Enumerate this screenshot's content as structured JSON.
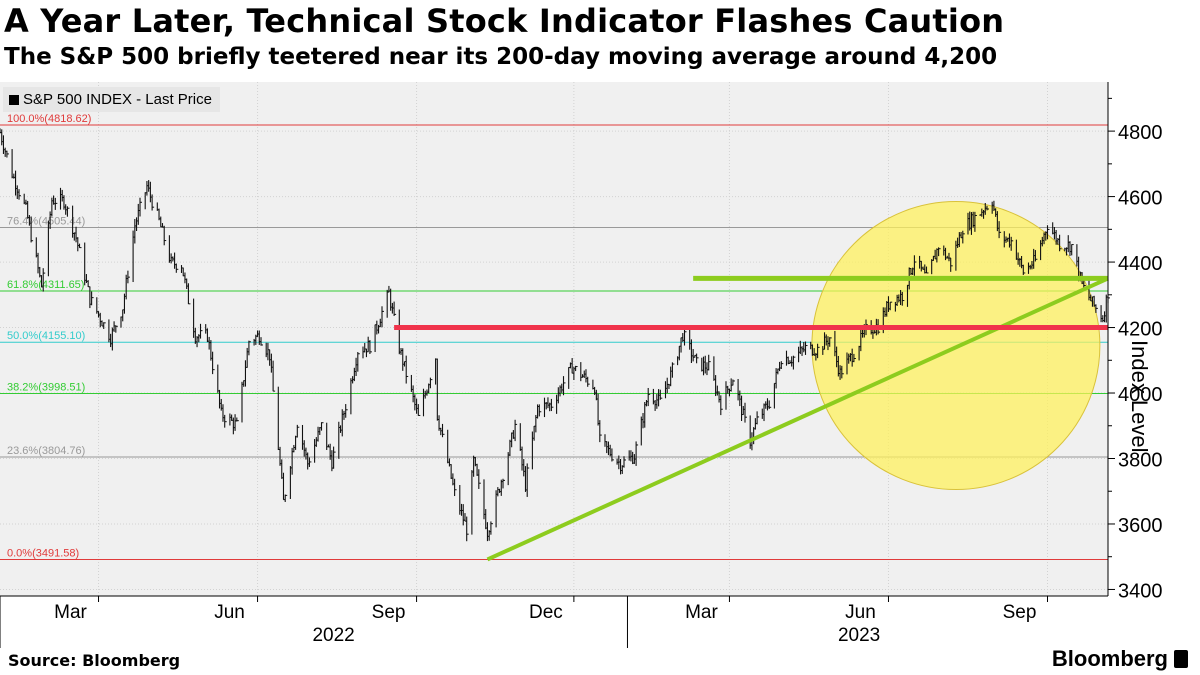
{
  "header": {
    "title": "A Year Later, Technical Stock Indicator Flashes Caution",
    "subtitle": "The S&P 500 briefly teetered near its 200-day moving average around 4,200"
  },
  "footer": {
    "source": "Source: Bloomberg",
    "brand": "Bloomberg"
  },
  "colors": {
    "fib_red": "#e03b3b",
    "fib_green": "#33cc33",
    "fib_cyan": "#33cccc",
    "fib_gray": "#999999",
    "trend_green": "#8dcc1e",
    "ma_red": "#f0334b",
    "circle_fill": "#fff159",
    "plot_bg": "#f0f0f0"
  },
  "chart_data": {
    "type": "line",
    "ylabel": "Index Level",
    "ylim": [
      3380,
      4950
    ],
    "yticks": [
      3400,
      3600,
      3800,
      4000,
      4200,
      4400,
      4600,
      4800
    ],
    "xlim": [
      "2022-01-03",
      "2023-10-06"
    ],
    "x_month_ticks": [
      {
        "label": "Mar",
        "date": "2022-03-01"
      },
      {
        "label": "Jun",
        "date": "2022-06-01"
      },
      {
        "label": "Sep",
        "date": "2022-09-01"
      },
      {
        "label": "Dec",
        "date": "2022-12-01"
      },
      {
        "label": "Mar",
        "date": "2023-03-01"
      },
      {
        "label": "Jun",
        "date": "2023-06-01"
      },
      {
        "label": "Sep",
        "date": "2023-09-01"
      }
    ],
    "x_year_labels": [
      {
        "label": "2022",
        "date": "2022-07-15"
      },
      {
        "label": "2023",
        "date": "2023-05-15"
      }
    ],
    "grid": "horizontal",
    "legend": {
      "label": "S&P 500 INDEX - Last Price",
      "placement": "top-left"
    },
    "fib_levels": [
      {
        "label": "100.0%(4818.62)",
        "value": 4818.62,
        "color": "red"
      },
      {
        "label": "76.4%(4505.44)",
        "value": 4505.44,
        "color": "gray"
      },
      {
        "label": "61.8%(4311.65)",
        "value": 4311.65,
        "color": "green"
      },
      {
        "label": "50.0%(4155.10)",
        "value": 4155.1,
        "color": "cyan"
      },
      {
        "label": "38.2%(3998.51)",
        "value": 3998.51,
        "color": "green"
      },
      {
        "label": "23.6%(3804.76)",
        "value": 3804.76,
        "color": "gray"
      },
      {
        "label": "0.0%(3491.58)",
        "value": 3491.58,
        "color": "red"
      }
    ],
    "series": [
      {
        "values_format": [
          "date",
          "close"
        ],
        "values": [
          [
            "2022-01-03",
            4796
          ],
          [
            "2022-01-10",
            4670
          ],
          [
            "2022-01-18",
            4560
          ],
          [
            "2022-01-27",
            4326
          ],
          [
            "2022-02-02",
            4589
          ],
          [
            "2022-02-09",
            4587
          ],
          [
            "2022-02-16",
            4475
          ],
          [
            "2022-02-24",
            4288
          ],
          [
            "2022-03-08",
            4170
          ],
          [
            "2022-03-15",
            4262
          ],
          [
            "2022-03-22",
            4512
          ],
          [
            "2022-03-29",
            4631
          ],
          [
            "2022-04-05",
            4525
          ],
          [
            "2022-04-12",
            4397
          ],
          [
            "2022-04-18",
            4392
          ],
          [
            "2022-04-26",
            4175
          ],
          [
            "2022-05-03",
            4175
          ],
          [
            "2022-05-11",
            3935
          ],
          [
            "2022-05-20",
            3901
          ],
          [
            "2022-05-27",
            4158
          ],
          [
            "2022-06-02",
            4177
          ],
          [
            "2022-06-08",
            4115
          ],
          [
            "2022-06-16",
            3667
          ],
          [
            "2022-06-24",
            3911
          ],
          [
            "2022-06-30",
            3785
          ],
          [
            "2022-07-08",
            3899
          ],
          [
            "2022-07-14",
            3790
          ],
          [
            "2022-07-22",
            3962
          ],
          [
            "2022-07-29",
            4130
          ],
          [
            "2022-08-05",
            4145
          ],
          [
            "2022-08-16",
            4305
          ],
          [
            "2022-08-22",
            4138
          ],
          [
            "2022-08-26",
            4058
          ],
          [
            "2022-09-02",
            3924
          ],
          [
            "2022-09-12",
            4110
          ],
          [
            "2022-09-13",
            3932
          ],
          [
            "2022-09-23",
            3693
          ],
          [
            "2022-09-30",
            3585
          ],
          [
            "2022-10-04",
            3791
          ],
          [
            "2022-10-12",
            3577
          ],
          [
            "2022-10-21",
            3753
          ],
          [
            "2022-10-28",
            3901
          ],
          [
            "2022-11-03",
            3720
          ],
          [
            "2022-11-10",
            3956
          ],
          [
            "2022-11-18",
            3965
          ],
          [
            "2022-11-30",
            4080
          ],
          [
            "2022-12-13",
            4019
          ],
          [
            "2022-12-16",
            3852
          ],
          [
            "2022-12-28",
            3783
          ],
          [
            "2023-01-05",
            3808
          ],
          [
            "2023-01-13",
            3999
          ],
          [
            "2023-01-20",
            3972
          ],
          [
            "2023-01-27",
            4070
          ],
          [
            "2023-02-02",
            4179
          ],
          [
            "2023-02-10",
            4090
          ],
          [
            "2023-02-17",
            4079
          ],
          [
            "2023-02-24",
            3970
          ],
          [
            "2023-03-03",
            4045
          ],
          [
            "2023-03-13",
            3855
          ],
          [
            "2023-03-17",
            3916
          ],
          [
            "2023-03-24",
            3971
          ],
          [
            "2023-03-31",
            4109
          ],
          [
            "2023-04-06",
            4105
          ],
          [
            "2023-04-14",
            4137
          ],
          [
            "2023-04-21",
            4133
          ],
          [
            "2023-04-28",
            4169
          ],
          [
            "2023-05-04",
            4061
          ],
          [
            "2023-05-12",
            4124
          ],
          [
            "2023-05-19",
            4191
          ],
          [
            "2023-05-26",
            4205
          ],
          [
            "2023-06-02",
            4282
          ],
          [
            "2023-06-09",
            4298
          ],
          [
            "2023-06-16",
            4409
          ],
          [
            "2023-06-23",
            4348
          ],
          [
            "2023-06-30",
            4450
          ],
          [
            "2023-07-07",
            4398
          ],
          [
            "2023-07-14",
            4505
          ],
          [
            "2023-07-21",
            4536
          ],
          [
            "2023-07-31",
            4589
          ],
          [
            "2023-08-04",
            4478
          ],
          [
            "2023-08-11",
            4464
          ],
          [
            "2023-08-18",
            4370
          ],
          [
            "2023-08-25",
            4405
          ],
          [
            "2023-09-01",
            4515
          ],
          [
            "2023-09-08",
            4457
          ],
          [
            "2023-09-15",
            4450
          ],
          [
            "2023-09-21",
            4330
          ],
          [
            "2023-09-27",
            4274
          ],
          [
            "2023-10-03",
            4229
          ],
          [
            "2023-10-06",
            4308
          ]
        ]
      }
    ],
    "annotations": [
      {
        "type": "trendline",
        "color": "green",
        "from": [
          "2022-10-12",
          3491.58
        ],
        "to": [
          "2023-10-06",
          4350
        ]
      },
      {
        "type": "hline",
        "color": "green",
        "value": 4350,
        "from_date": "2023-02-08",
        "to_date": "2023-10-06"
      },
      {
        "type": "hline",
        "color": "red",
        "value": 4200,
        "from_date": "2022-08-19",
        "to_date": "2023-10-06"
      },
      {
        "type": "highlight-circle",
        "color": "yellow",
        "center": [
          "2023-07-10",
          4145
        ]
      }
    ]
  }
}
